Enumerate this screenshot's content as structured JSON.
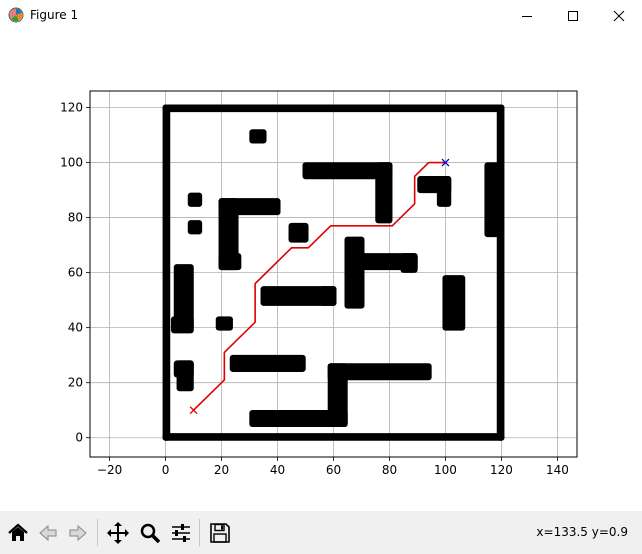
{
  "window": {
    "title": "Figure 1",
    "icon": "matplotlib-icon",
    "controls": [
      "minimize-icon",
      "maximize-icon",
      "close-icon"
    ]
  },
  "toolbar": {
    "buttons": [
      "home-icon",
      "back-icon",
      "forward-icon",
      "pan-icon",
      "zoom-icon",
      "configure-subplots-icon",
      "save-icon"
    ],
    "coords": "x=133.5 y=0.9"
  },
  "chart_data": {
    "type": "scatter",
    "title": "",
    "xlabel": "",
    "ylabel": "",
    "xlim": [
      -27,
      147
    ],
    "ylim": [
      -7,
      126
    ],
    "xticks": [
      -20,
      0,
      20,
      40,
      60,
      80,
      100,
      120,
      140
    ],
    "yticks": [
      0,
      20,
      40,
      60,
      80,
      100,
      120
    ],
    "grid": true,
    "colors": {
      "obstacle": "#000000",
      "path": "#e00000",
      "start": "#e00000",
      "goal": "#0000cc",
      "grid": "#b0b0b0"
    },
    "boundary": {
      "xmin": 0,
      "xmax": 120,
      "ymin": 0,
      "ymax": 120
    },
    "obstacles": [
      {
        "xmin": 31,
        "xmax": 35,
        "ymin": 108,
        "ymax": 111
      },
      {
        "xmin": 50,
        "xmax": 80,
        "ymin": 95,
        "ymax": 99
      },
      {
        "xmin": 76,
        "xmax": 80,
        "ymin": 79,
        "ymax": 99
      },
      {
        "xmin": 91,
        "xmax": 101,
        "ymin": 90,
        "ymax": 94
      },
      {
        "xmin": 98,
        "xmax": 101,
        "ymin": 85,
        "ymax": 94
      },
      {
        "xmin": 115,
        "xmax": 119,
        "ymin": 74,
        "ymax": 99
      },
      {
        "xmin": 9,
        "xmax": 12,
        "ymin": 85,
        "ymax": 88
      },
      {
        "xmin": 9,
        "xmax": 12,
        "ymin": 75,
        "ymax": 78
      },
      {
        "xmin": 20,
        "xmax": 40,
        "ymin": 82,
        "ymax": 86
      },
      {
        "xmin": 20,
        "xmax": 25,
        "ymin": 62,
        "ymax": 86
      },
      {
        "xmin": 20,
        "xmax": 26,
        "ymin": 62,
        "ymax": 66
      },
      {
        "xmin": 45,
        "xmax": 50,
        "ymin": 72,
        "ymax": 77
      },
      {
        "xmin": 35,
        "xmax": 60,
        "ymin": 49,
        "ymax": 54
      },
      {
        "xmin": 56,
        "xmax": 60,
        "ymin": 49,
        "ymax": 54
      },
      {
        "xmin": 65,
        "xmax": 70,
        "ymin": 48,
        "ymax": 72
      },
      {
        "xmin": 65,
        "xmax": 89,
        "ymin": 62,
        "ymax": 66
      },
      {
        "xmin": 85,
        "xmax": 89,
        "ymin": 61,
        "ymax": 66
      },
      {
        "xmin": 100,
        "xmax": 106,
        "ymin": 40,
        "ymax": 58
      },
      {
        "xmin": 4,
        "xmax": 9,
        "ymin": 40,
        "ymax": 62
      },
      {
        "xmin": 3,
        "xmax": 9,
        "ymin": 39,
        "ymax": 43
      },
      {
        "xmin": 19,
        "xmax": 23,
        "ymin": 40,
        "ymax": 43
      },
      {
        "xmin": 4,
        "xmax": 9,
        "ymin": 23,
        "ymax": 27
      },
      {
        "xmin": 5,
        "xmax": 9,
        "ymin": 18,
        "ymax": 27
      },
      {
        "xmin": 24,
        "xmax": 49,
        "ymin": 25,
        "ymax": 29
      },
      {
        "xmin": 59,
        "xmax": 94,
        "ymin": 22,
        "ymax": 26
      },
      {
        "xmin": 59,
        "xmax": 64,
        "ymin": 5,
        "ymax": 26
      },
      {
        "xmin": 31,
        "xmax": 64,
        "ymin": 5,
        "ymax": 9
      }
    ],
    "series": [
      {
        "type": "line",
        "x": [
          10,
          21,
          21,
          32,
          32,
          45,
          51,
          59,
          81,
          89,
          89,
          94,
          100
        ],
        "y": [
          10,
          21,
          31,
          42,
          56,
          69,
          69,
          77,
          77,
          85,
          95,
          100,
          100
        ]
      }
    ],
    "markers": [
      {
        "x": 10,
        "y": 10,
        "symbol": "x",
        "color": "#e00000"
      },
      {
        "x": 100,
        "y": 100,
        "symbol": "x",
        "color": "#0000cc"
      }
    ]
  }
}
